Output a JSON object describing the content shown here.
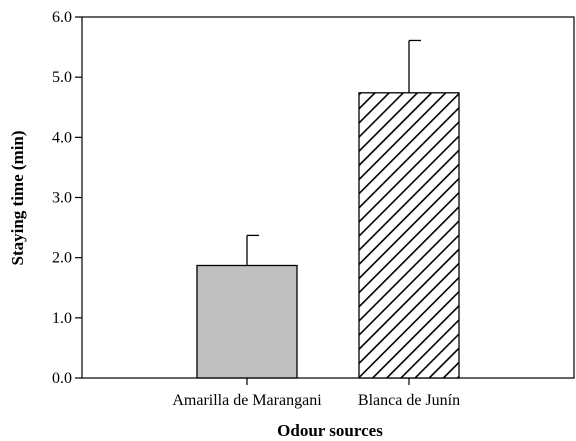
{
  "chart_data": {
    "type": "bar",
    "title": "",
    "xlabel": "Odour sources",
    "ylabel": "Staying time (min)",
    "ylim": [
      0,
      6
    ],
    "yticks": [
      "0.0",
      "1.0",
      "2.0",
      "3.0",
      "4.0",
      "5.0",
      "6.0"
    ],
    "grid": false,
    "categories": [
      "Amarilla de Marangani",
      "Blanca de Junín"
    ],
    "values": [
      1.87,
      4.74
    ],
    "errors": [
      0.5,
      0.87
    ],
    "fills": [
      "solid",
      "hatched"
    ],
    "colors": {
      "bar_solid": "#c0c0c0",
      "stroke": "#000000",
      "hatch_background": "#ffffff"
    }
  }
}
